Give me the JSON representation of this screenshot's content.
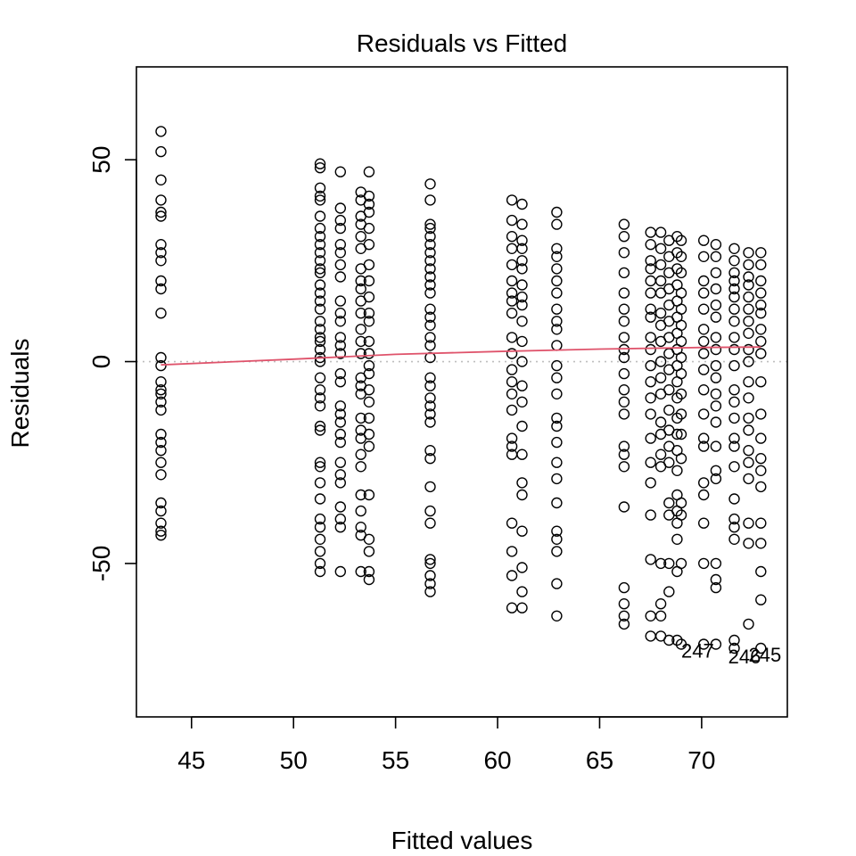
{
  "chart_data": {
    "type": "scatter",
    "title": "Residuals vs Fitted",
    "xlabel": "Fitted values",
    "ylabel": "Residuals",
    "xlim": [
      42.3,
      74.2
    ],
    "ylim": [
      -88,
      73
    ],
    "xticks": [
      45,
      50,
      55,
      60,
      65,
      70
    ],
    "yticks": [
      -50,
      0,
      50
    ],
    "colors": {
      "points": "#000000",
      "smooth": "#DF536B",
      "reference": "#BEBEBE"
    },
    "reference_line": {
      "y": 0,
      "style": "dotted"
    },
    "point_labels": [
      {
        "text": "247",
        "x": 69.0,
        "y": -71.5
      },
      {
        "text": "246",
        "x": 71.3,
        "y": -73.0
      },
      {
        "text": "245",
        "x": 72.3,
        "y": -72.5
      }
    ],
    "series": [
      {
        "x": 43.5,
        "y": [
          57,
          52,
          45,
          40,
          37,
          36,
          29,
          27,
          25,
          20,
          18,
          12,
          1,
          -1,
          -5,
          -7,
          -8,
          -10,
          -12,
          -18,
          -20,
          -22,
          -25,
          -28,
          -35,
          -37,
          -40,
          -42,
          -43
        ]
      },
      {
        "x": 51.3,
        "y": [
          49,
          48,
          43,
          41,
          40,
          36,
          33,
          31,
          29,
          27,
          25,
          23,
          22,
          19,
          17,
          15,
          13,
          10,
          8,
          6,
          5,
          3,
          1,
          0,
          -4,
          -7,
          -9,
          -11,
          -16,
          -17,
          -25,
          -26,
          -30,
          -34,
          -39,
          -41,
          -44,
          -47,
          -50,
          -52
        ]
      },
      {
        "x": 52.3,
        "y": [
          47,
          38,
          35,
          33,
          29,
          27,
          24,
          21,
          15,
          12,
          10,
          6,
          4,
          2,
          -3,
          -5,
          -11,
          -13,
          -15,
          -18,
          -20,
          -25,
          -28,
          -30,
          -36,
          -39,
          -41,
          -52
        ]
      },
      {
        "x": 53.3,
        "y": [
          42,
          40,
          36,
          34,
          31,
          28,
          23,
          20,
          18,
          15,
          12,
          8,
          5,
          2,
          -4,
          -6,
          -8,
          -14,
          -17,
          -19,
          -23,
          -26,
          -33,
          -37,
          -41,
          -43,
          -52
        ]
      },
      {
        "x": 53.7,
        "y": [
          47,
          41,
          39,
          37,
          33,
          29,
          24,
          20,
          16,
          12,
          10,
          5,
          2,
          -1,
          -3,
          -7,
          -10,
          -14,
          -18,
          -21,
          -33,
          -44,
          -47,
          -52,
          -54
        ]
      },
      {
        "x": 56.7,
        "y": [
          44,
          40,
          34,
          33,
          31,
          29,
          27,
          25,
          23,
          21,
          19,
          17,
          13,
          11,
          9,
          6,
          4,
          1,
          -4,
          -6,
          -9,
          -11,
          -13,
          -15,
          -22,
          -24,
          -31,
          -37,
          -40,
          -49,
          -50,
          -53,
          -55,
          -57
        ]
      },
      {
        "x": 60.7,
        "y": [
          40,
          35,
          31,
          28,
          24,
          20,
          17,
          15,
          12,
          6,
          2,
          -2,
          -5,
          -8,
          -12,
          -19,
          -21,
          -23,
          -40,
          -47,
          -53,
          -61
        ]
      },
      {
        "x": 61.2,
        "y": [
          39,
          34,
          30,
          28,
          25,
          23,
          19,
          16,
          14,
          10,
          5,
          0,
          -6,
          -10,
          -16,
          -23,
          -30,
          -33,
          -42,
          -51,
          -57,
          -61
        ]
      },
      {
        "x": 62.9,
        "y": [
          37,
          34,
          28,
          26,
          23,
          20,
          17,
          13,
          10,
          8,
          4,
          -1,
          -4,
          -8,
          -14,
          -16,
          -20,
          -25,
          -29,
          -35,
          -42,
          -44,
          -47,
          -55,
          -63
        ]
      },
      {
        "x": 66.2,
        "y": [
          34,
          31,
          27,
          22,
          17,
          13,
          10,
          6,
          3,
          1,
          -3,
          -7,
          -10,
          -13,
          -21,
          -23,
          -26,
          -36,
          -56,
          -60,
          -63,
          -65
        ]
      },
      {
        "x": 67.5,
        "y": [
          32,
          29,
          25,
          23,
          20,
          17,
          13,
          11,
          6,
          3,
          -1,
          -5,
          -9,
          -13,
          -19,
          -25,
          -30,
          -38,
          -49,
          -63,
          -68
        ]
      },
      {
        "x": 68.0,
        "y": [
          32,
          28,
          24,
          20,
          17,
          12,
          9,
          5,
          0,
          -4,
          -8,
          -15,
          -18,
          -23,
          -26,
          -50,
          -60,
          -63,
          -68
        ]
      },
      {
        "x": 68.4,
        "y": [
          30,
          26,
          22,
          18,
          14,
          10,
          6,
          2,
          -2,
          -7,
          -12,
          -17,
          -21,
          -25,
          -35,
          -38,
          -50,
          -57,
          -69
        ]
      },
      {
        "x": 68.8,
        "y": [
          31,
          27,
          23,
          19,
          15,
          11,
          7,
          3,
          -1,
          -5,
          -9,
          -14,
          -18,
          -22,
          -27,
          -33,
          -37,
          -40,
          -44,
          -52,
          -69
        ]
      },
      {
        "x": 69.0,
        "y": [
          30,
          26,
          22,
          17,
          13,
          9,
          5,
          1,
          -3,
          -8,
          -13,
          -18,
          -24,
          -35,
          -38,
          -50,
          -70
        ]
      },
      {
        "x": 70.1,
        "y": [
          30,
          26,
          20,
          17,
          13,
          8,
          5,
          2,
          -2,
          -7,
          -13,
          -19,
          -21,
          -30,
          -33,
          -40,
          -50,
          -70
        ]
      },
      {
        "x": 70.7,
        "y": [
          29,
          26,
          22,
          18,
          14,
          11,
          6,
          3,
          -1,
          -4,
          -8,
          -11,
          -15,
          -21,
          -27,
          -29,
          -50,
          -54,
          -56,
          -70
        ]
      },
      {
        "x": 71.6,
        "y": [
          28,
          25,
          22,
          20,
          18,
          16,
          13,
          10,
          6,
          3,
          -1,
          -7,
          -10,
          -14,
          -19,
          -21,
          -26,
          -34,
          -39,
          -41,
          -44,
          -69,
          -71
        ]
      },
      {
        "x": 72.3,
        "y": [
          27,
          24,
          21,
          19,
          16,
          13,
          10,
          7,
          3,
          0,
          -5,
          -9,
          -14,
          -17,
          -22,
          -25,
          -29,
          -40,
          -45,
          -65
        ]
      },
      {
        "x": 72.9,
        "y": [
          27,
          24,
          20,
          17,
          14,
          12,
          8,
          5,
          2,
          -5,
          -13,
          -19,
          -24,
          -27,
          -31,
          -40,
          -45,
          -52,
          -59,
          -71
        ]
      }
    ],
    "smooth_line": {
      "x": [
        43.5,
        50,
        55,
        60,
        65,
        70,
        72.9
      ],
      "y": [
        -0.8,
        0.6,
        1.8,
        2.5,
        3.1,
        3.5,
        3.6
      ]
    }
  }
}
